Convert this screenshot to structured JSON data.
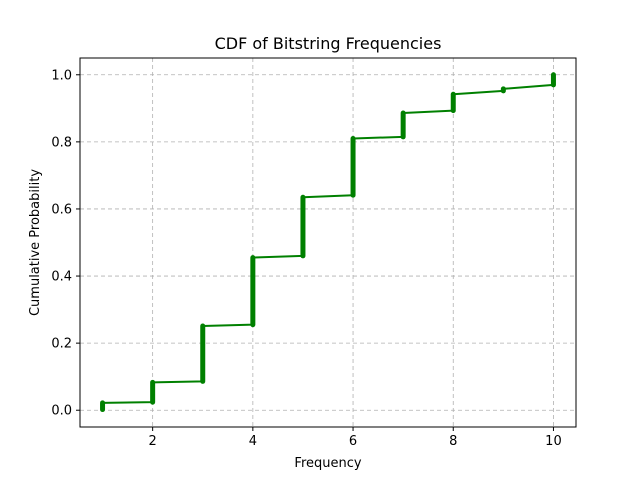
{
  "chart_data": {
    "type": "line",
    "title": "CDF of Bitstring Frequencies",
    "xlabel": "Frequency",
    "ylabel": "Cumulative Probability",
    "xlim": [
      0.55,
      10.45
    ],
    "ylim": [
      -0.05,
      1.05
    ],
    "xticks": [
      2,
      4,
      6,
      8,
      10
    ],
    "yticks": [
      0.0,
      0.2,
      0.4,
      0.6,
      0.8,
      1.0
    ],
    "grid": true,
    "color": "#008000",
    "series": [
      {
        "steps": [
          {
            "x": 1,
            "y_low": 0.002,
            "y_high": 0.022
          },
          {
            "x": 2,
            "y_low": 0.024,
            "y_high": 0.083
          },
          {
            "x": 3,
            "y_low": 0.086,
            "y_high": 0.251
          },
          {
            "x": 4,
            "y_low": 0.255,
            "y_high": 0.455
          },
          {
            "x": 5,
            "y_low": 0.46,
            "y_high": 0.635
          },
          {
            "x": 6,
            "y_low": 0.641,
            "y_high": 0.81
          },
          {
            "x": 7,
            "y_low": 0.815,
            "y_high": 0.886
          },
          {
            "x": 8,
            "y_low": 0.893,
            "y_high": 0.942
          },
          {
            "x": 9,
            "y_low": 0.952,
            "y_high": 0.958
          },
          {
            "x": 10,
            "y_low": 0.97,
            "y_high": 1.0
          }
        ]
      }
    ]
  }
}
